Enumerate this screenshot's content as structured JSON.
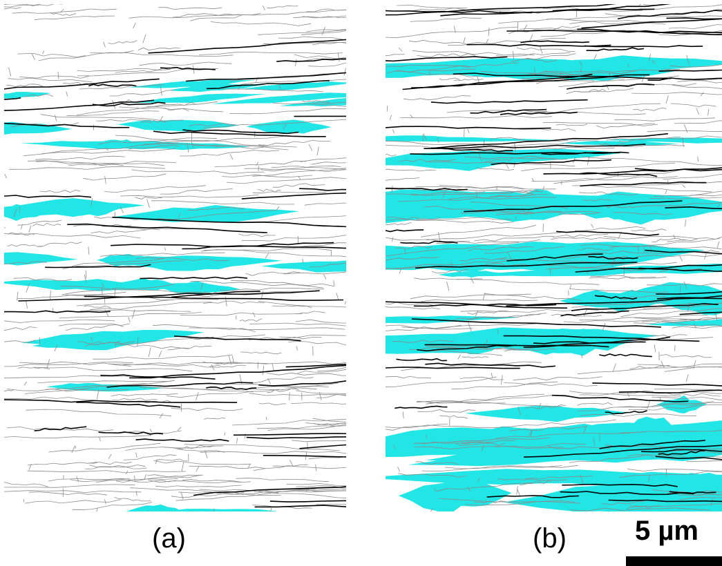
{
  "panels": [
    {
      "id": "a",
      "label": "(a)",
      "phase_fraction": 0.18
    },
    {
      "id": "b",
      "label": "(b)",
      "phase_fraction": 0.55
    }
  ],
  "scale_bar": {
    "text": "5 µm"
  },
  "colors": {
    "phase_fill": "#22e5e5",
    "boundary_thin": "#8a8a8a",
    "boundary_thick": "#000000",
    "background": "#ffffff"
  }
}
